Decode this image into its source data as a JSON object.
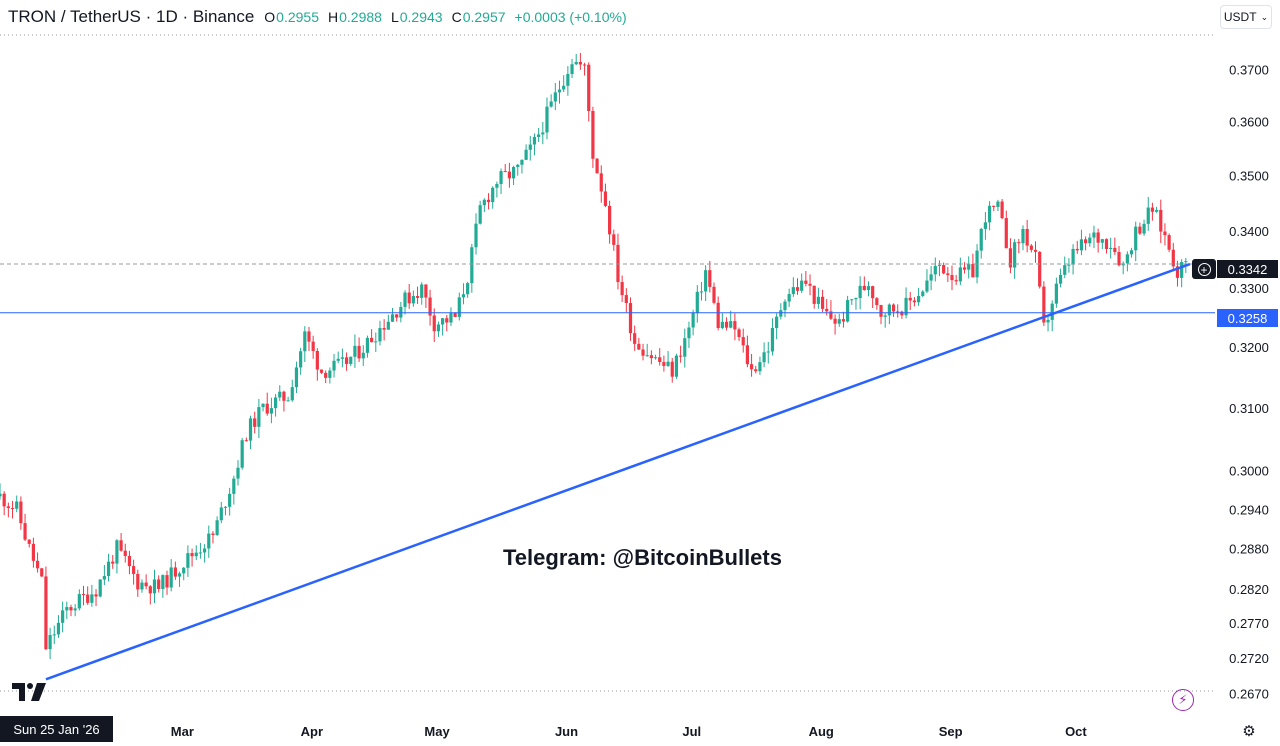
{
  "header": {
    "symbol": "TRON / TetherUS · 1D · Binance",
    "open_key": "O",
    "open": "0.2955",
    "high_key": "H",
    "high": "0.2988",
    "low_key": "L",
    "low": "0.2943",
    "close_key": "C",
    "close": "0.2957",
    "change": "+0.0003 (+0.10%)"
  },
  "currency": "USDT",
  "watermark": "Telegram: @BitcoinBullets",
  "crosshair_date": "Sun 25 Jan '26",
  "price_badges": {
    "last": "0.3342",
    "line": "0.3258"
  },
  "colors": {
    "up": "#22ab94",
    "down": "#f23645",
    "trendline": "#2962ff",
    "text": "#131722"
  },
  "icons": {
    "logo": "tradingview-logo-icon",
    "alert": "add-alert-icon",
    "flash": "flash-icon",
    "settings": "gear-icon"
  },
  "chart_data": {
    "type": "candlestick",
    "y_scale": "log",
    "price_ticks": [
      "0.3700",
      "0.3600",
      "0.3500",
      "0.3400",
      "0.3300",
      "0.3200",
      "0.3100",
      "0.3000",
      "0.2940",
      "0.2880",
      "0.2820",
      "0.2770",
      "0.2720",
      "0.2670"
    ],
    "date_ticks": [
      "Mar",
      "Apr",
      "May",
      "Jun",
      "Jul",
      "Aug",
      "Sep",
      "Oct"
    ],
    "anchors": [
      [
        "2026-01-18",
        0.296
      ],
      [
        "2026-01-22",
        0.294
      ],
      [
        "2026-01-25",
        0.288
      ],
      [
        "2026-01-28",
        0.283
      ],
      [
        "2026-01-29",
        0.2735
      ],
      [
        "2026-02-03",
        0.279
      ],
      [
        "2026-02-10",
        0.282
      ],
      [
        "2026-02-15",
        0.288
      ],
      [
        "2026-02-20",
        0.283
      ],
      [
        "2026-02-25",
        0.2822
      ],
      [
        "2026-03-03",
        0.286
      ],
      [
        "2026-03-10",
        0.29
      ],
      [
        "2026-03-15",
        0.299
      ],
      [
        "2026-03-18",
        0.306
      ],
      [
        "2026-03-22",
        0.31
      ],
      [
        "2026-03-28",
        0.312
      ],
      [
        "2026-04-01",
        0.322
      ],
      [
        "2026-04-05",
        0.316
      ],
      [
        "2026-04-10",
        0.317
      ],
      [
        "2026-04-15",
        0.32
      ],
      [
        "2026-04-20",
        0.324
      ],
      [
        "2026-04-25",
        0.328
      ],
      [
        "2026-04-29",
        0.33
      ],
      [
        "2026-05-02",
        0.324
      ],
      [
        "2026-05-07",
        0.325
      ],
      [
        "2026-05-10",
        0.332
      ],
      [
        "2026-05-13",
        0.344
      ],
      [
        "2026-05-17",
        0.349
      ],
      [
        "2026-05-22",
        0.351
      ],
      [
        "2026-05-26",
        0.356
      ],
      [
        "2026-05-30",
        0.363
      ],
      [
        "2026-06-04",
        0.372
      ],
      [
        "2026-06-07",
        0.37
      ],
      [
        "2026-06-09",
        0.354
      ],
      [
        "2026-06-12",
        0.345
      ],
      [
        "2026-06-15",
        0.332
      ],
      [
        "2026-06-19",
        0.321
      ],
      [
        "2026-06-24",
        0.318
      ],
      [
        "2026-06-28",
        0.316
      ],
      [
        "2026-07-02",
        0.323
      ],
      [
        "2026-07-06",
        0.333
      ],
      [
        "2026-07-09",
        0.324
      ],
      [
        "2026-07-13",
        0.323
      ],
      [
        "2026-07-17",
        0.316
      ],
      [
        "2026-07-21",
        0.32
      ],
      [
        "2026-07-25",
        0.329
      ],
      [
        "2026-07-30",
        0.331
      ],
      [
        "2026-08-03",
        0.326
      ],
      [
        "2026-08-07",
        0.324
      ],
      [
        "2026-08-10",
        0.328
      ],
      [
        "2026-08-14",
        0.331
      ],
      [
        "2026-08-17",
        0.326
      ],
      [
        "2026-08-23",
        0.327
      ],
      [
        "2026-08-27",
        0.33
      ],
      [
        "2026-08-31",
        0.334
      ],
      [
        "2026-09-04",
        0.332
      ],
      [
        "2026-09-08",
        0.333
      ],
      [
        "2026-09-11",
        0.343
      ],
      [
        "2026-09-14",
        0.344
      ],
      [
        "2026-09-17",
        0.335
      ],
      [
        "2026-09-20",
        0.34
      ],
      [
        "2026-09-23",
        0.335
      ],
      [
        "2026-09-25",
        0.323
      ],
      [
        "2026-09-28",
        0.33
      ],
      [
        "2026-10-02",
        0.336
      ],
      [
        "2026-10-07",
        0.339
      ],
      [
        "2026-10-11",
        0.338
      ],
      [
        "2026-10-14",
        0.334
      ],
      [
        "2026-10-17",
        0.34
      ],
      [
        "2026-10-21",
        0.344
      ],
      [
        "2026-10-24",
        0.339
      ],
      [
        "2026-10-27",
        0.333
      ],
      [
        "2026-10-29",
        0.3342
      ]
    ],
    "trendline": [
      [
        "2026-01-29",
        0.269
      ],
      [
        "2026-10-30",
        0.3342
      ]
    ],
    "horizontal_levels": [
      {
        "price": 0.3258,
        "style": "solid"
      },
      {
        "price": 0.3342,
        "style": "dashed"
      }
    ]
  }
}
